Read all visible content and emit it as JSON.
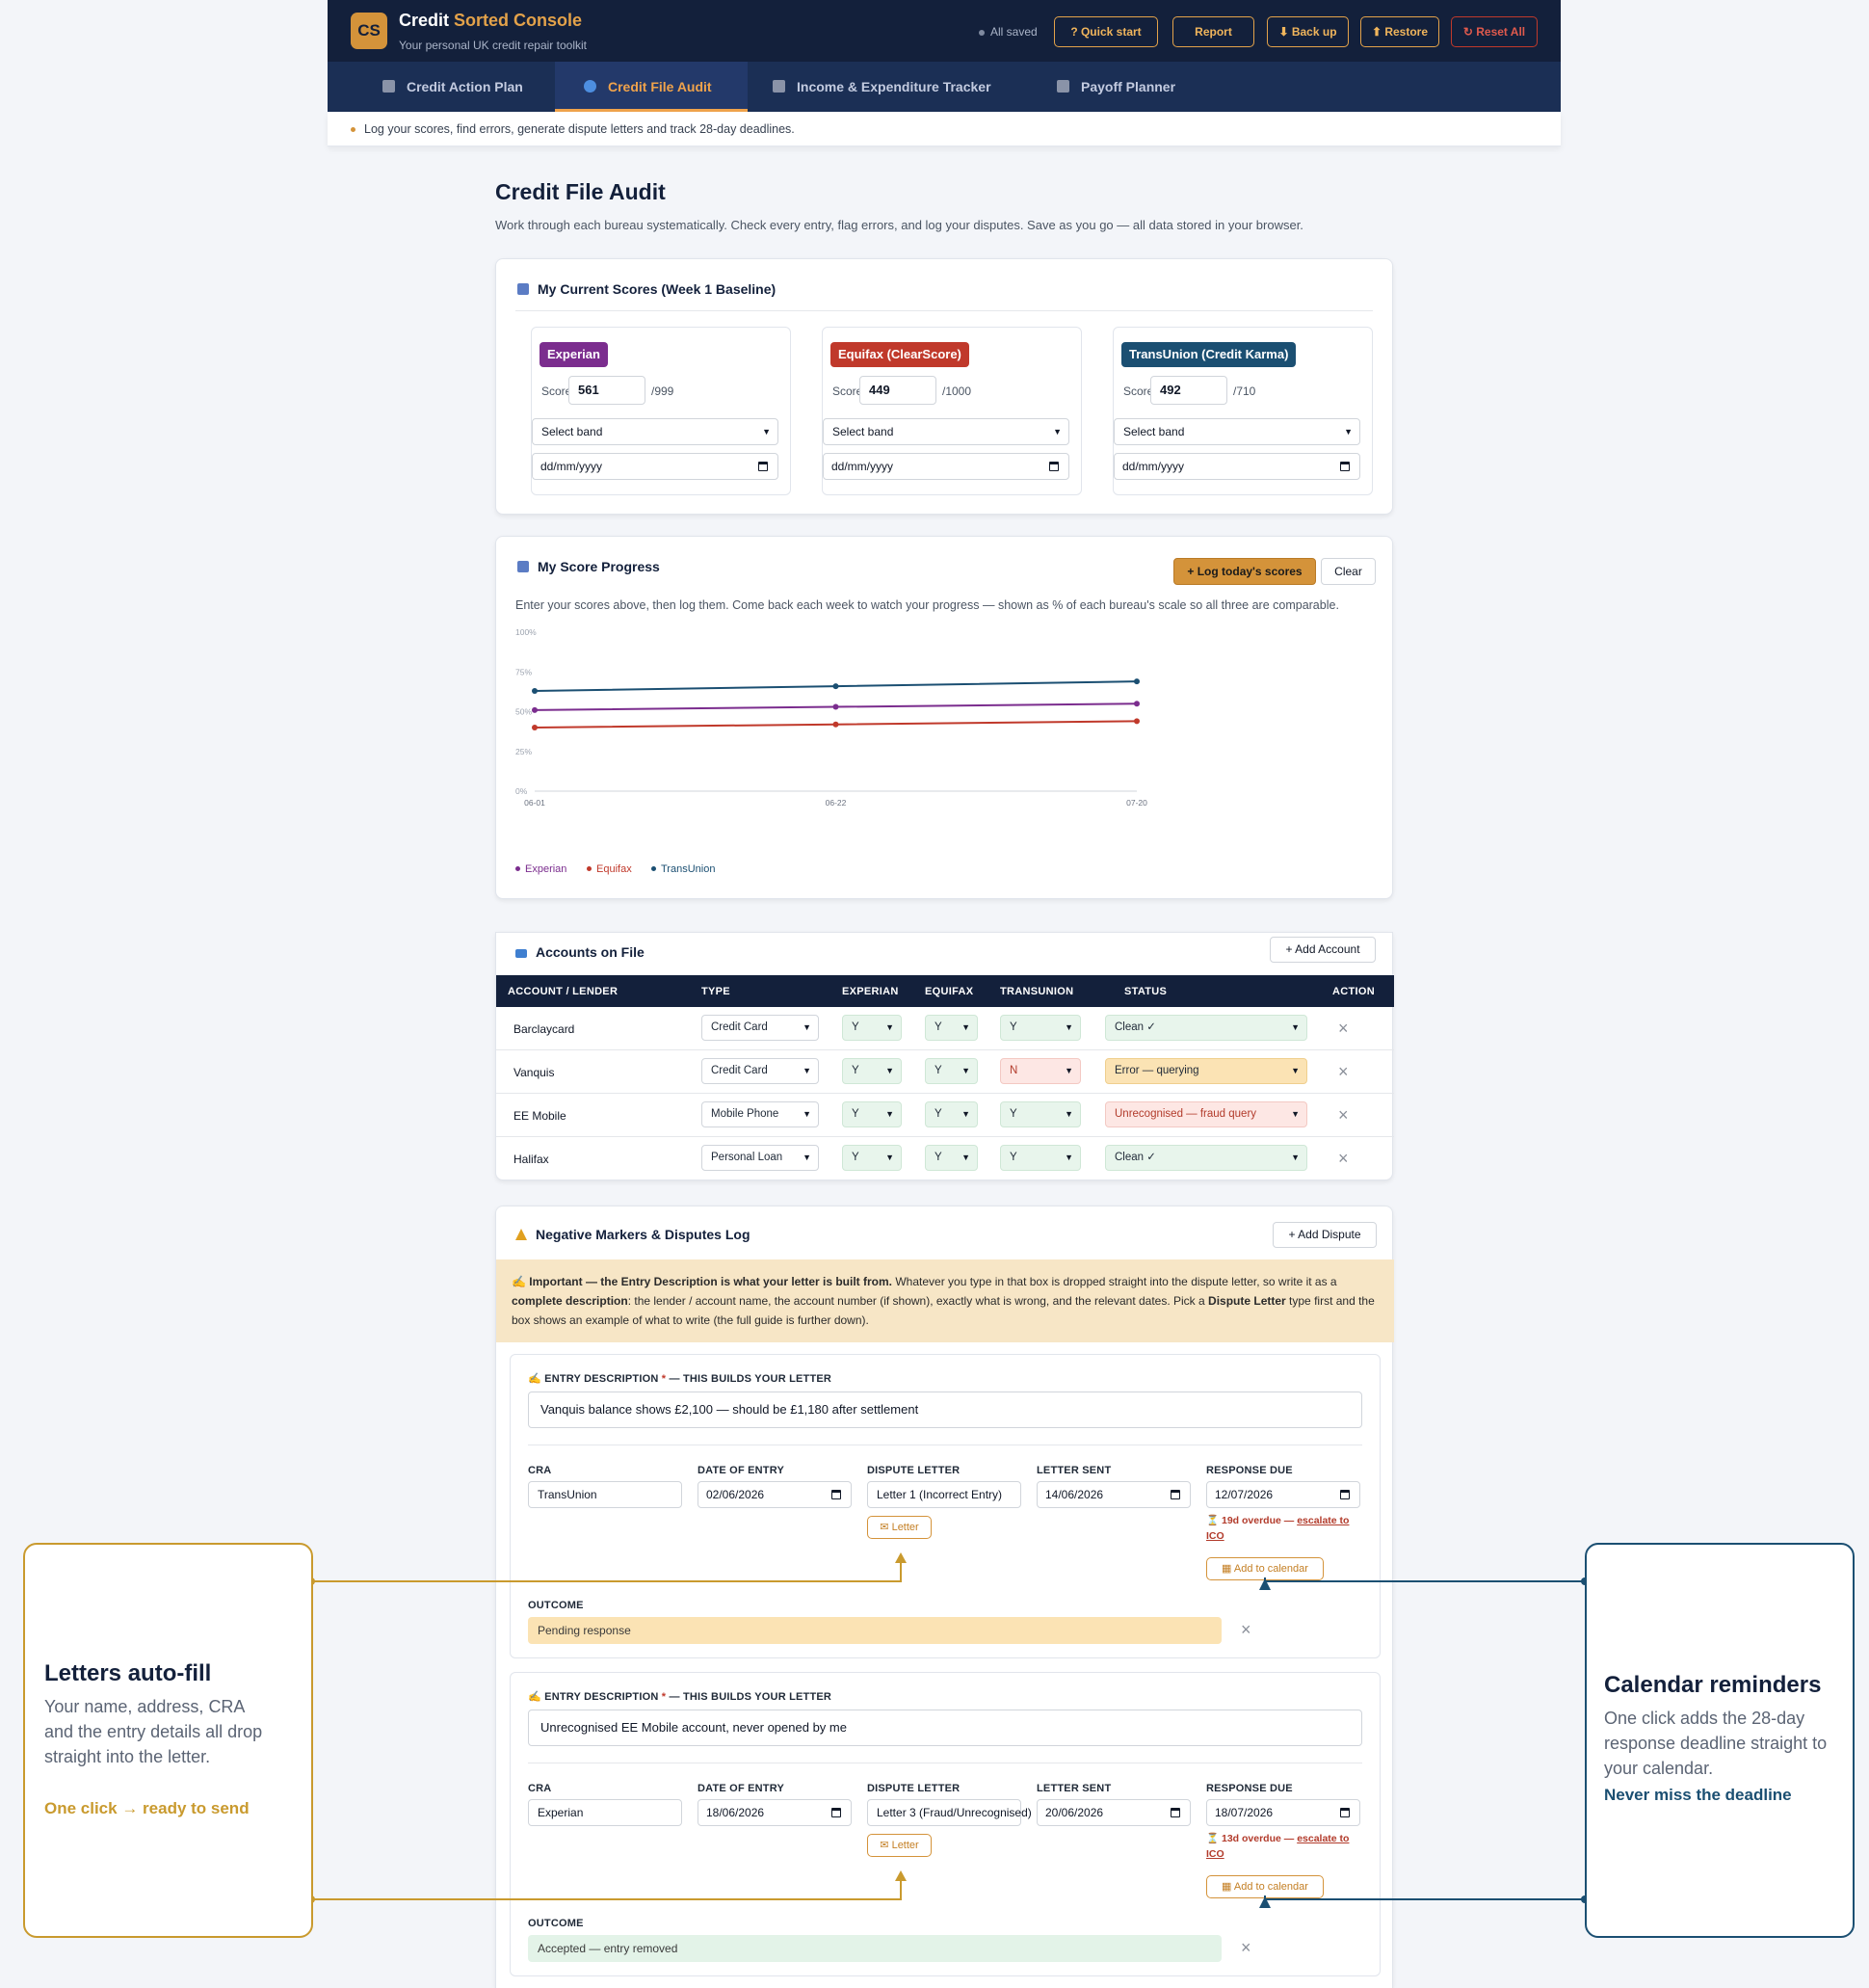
{
  "header": {
    "logo_text": "CS",
    "brand_main": "Credit",
    "brand_accent": "Sorted Console",
    "subtitle": "Your personal UK credit repair toolkit",
    "saved_status": "All saved",
    "buttons": {
      "quick_start": "? Quick start",
      "report": "Report",
      "backup": "⬇ Back up",
      "restore": "⬆ Restore",
      "reset": "↻ Reset All"
    }
  },
  "tabs": [
    {
      "label": "Credit Action Plan"
    },
    {
      "label": "Credit File Audit"
    },
    {
      "label": "Income & Expenditure Tracker"
    },
    {
      "label": "Payoff Planner"
    }
  ],
  "hint": "Log your scores, find errors, generate dispute letters and track 28-day deadlines.",
  "page": {
    "title": "Credit File Audit",
    "subtitle": "Work through each bureau systematically. Check every entry, flag errors, and log your disputes. Save as you go — all data stored in your browser."
  },
  "scores": {
    "title": "My Current Scores (Week 1 Baseline)",
    "score_label": "Score:",
    "band_placeholder": "Select band",
    "date_placeholder": "dd/mm/yyyy",
    "bureaus": [
      {
        "name": "Experian",
        "score": "561",
        "max": "/999",
        "color": "#7b2d8e"
      },
      {
        "name": "Equifax (ClearScore)",
        "score": "449",
        "max": "/1000",
        "color": "#c0392b"
      },
      {
        "name": "TransUnion (Credit Karma)",
        "score": "492",
        "max": "/710",
        "color": "#1b4f72"
      }
    ]
  },
  "progress": {
    "title": "My Score Progress",
    "log_button": "+ Log today's scores",
    "clear_button": "Clear",
    "note": "Enter your scores above, then log them. Come back each week to watch your progress — shown as % of each bureau's scale so all three are comparable."
  },
  "chart_data": {
    "type": "line",
    "title": "",
    "xlabel": "",
    "ylabel": "",
    "x": [
      "06-01",
      "06-22",
      "07-20"
    ],
    "y_ticks": [
      "0%",
      "25%",
      "50%",
      "75%",
      "100%"
    ],
    "ylim": [
      0,
      100
    ],
    "grid": false,
    "legend": "bottom-left",
    "series": [
      {
        "name": "Experian",
        "color": "#7b2d8e",
        "values": [
          51,
          53,
          55
        ]
      },
      {
        "name": "Equifax",
        "color": "#c0392b",
        "values": [
          40,
          42,
          44
        ]
      },
      {
        "name": "TransUnion",
        "color": "#1b4f72",
        "values": [
          63,
          66,
          69
        ]
      }
    ]
  },
  "accounts": {
    "title": "Accounts on File",
    "add_button": "+ Add Account",
    "columns": [
      "ACCOUNT / LENDER",
      "TYPE",
      "EXPERIAN",
      "EQUIFAX",
      "TRANSUNION",
      "STATUS",
      "ACTION"
    ],
    "rows": [
      {
        "lender": "Barclaycard",
        "type": "Credit Card",
        "experian": "Y",
        "equifax": "Y",
        "transunion": "Y",
        "status": "Clean ✓"
      },
      {
        "lender": "Vanquis",
        "type": "Credit Card",
        "experian": "Y",
        "equifax": "Y",
        "transunion": "N",
        "status": "Error — querying"
      },
      {
        "lender": "EE Mobile",
        "type": "Mobile Phone",
        "experian": "Y",
        "equifax": "Y",
        "transunion": "Y",
        "status": "Unrecognised — fraud query"
      },
      {
        "lender": "Halifax",
        "type": "Personal Loan",
        "experian": "Y",
        "equifax": "Y",
        "transunion": "Y",
        "status": "Clean ✓"
      }
    ]
  },
  "disputes": {
    "title": "Negative Markers & Disputes Log",
    "add_button": "+ Add Dispute",
    "notice": {
      "bold_lead": "Important — the Entry Description is what your letter is built from.",
      "text1": " Whatever you type in that box is dropped straight into the dispute letter, so write it as a ",
      "bold2": "complete description",
      "text2": ": the lender / account name, the account number (if shown), exactly what is wrong, and the relevant dates. Pick a ",
      "bold3": "Dispute Letter",
      "text3": " type first and the box shows an example of what to write (the full guide is further down)."
    },
    "labels": {
      "entry_desc": "ENTRY DESCRIPTION",
      "entry_desc_suffix": " — THIS BUILDS YOUR LETTER",
      "required": "*",
      "cra": "CRA",
      "date_entry": "DATE OF ENTRY",
      "dispute_letter": "DISPUTE LETTER",
      "letter_sent": "LETTER SENT",
      "response_due": "RESPONSE DUE",
      "outcome": "OUTCOME",
      "letter_button": "✉ Letter",
      "calendar_button": "Add to calendar"
    },
    "entries": [
      {
        "description": "Vanquis balance shows £2,100 — should be £1,180 after settlement",
        "cra": "TransUnion",
        "date_entry": "02/06/2026",
        "letter": "Letter 1 (Incorrect Entry)",
        "letter_sent": "14/06/2026",
        "response_due": "12/07/2026",
        "overdue": "⏳ 19d overdue — ",
        "escalate": "escalate to ICO",
        "outcome": "Pending response",
        "outcome_color": "#fbe3b4"
      },
      {
        "description": "Unrecognised EE Mobile account, never opened by me",
        "cra": "Experian",
        "date_entry": "18/06/2026",
        "letter": "Letter 3 (Fraud/Unrecognised)",
        "letter_sent": "20/06/2026",
        "response_due": "18/07/2026",
        "overdue": "⏳ 13d overdue — ",
        "escalate": "escalate to ICO",
        "outcome": "Accepted — entry removed",
        "outcome_color": "#e3f3e8"
      }
    ]
  },
  "callouts": {
    "letters": {
      "title": "Letters auto-fill",
      "body": "Your name, address, CRA and the entry details all drop straight into the letter.",
      "tag": "One click → ready to send",
      "color": "#c99a2e"
    },
    "calendar": {
      "title": "Calendar reminders",
      "body": "One click adds the 28-day response deadline straight to your calendar.",
      "tag": "Never miss the deadline",
      "color": "#1b4f72"
    }
  }
}
